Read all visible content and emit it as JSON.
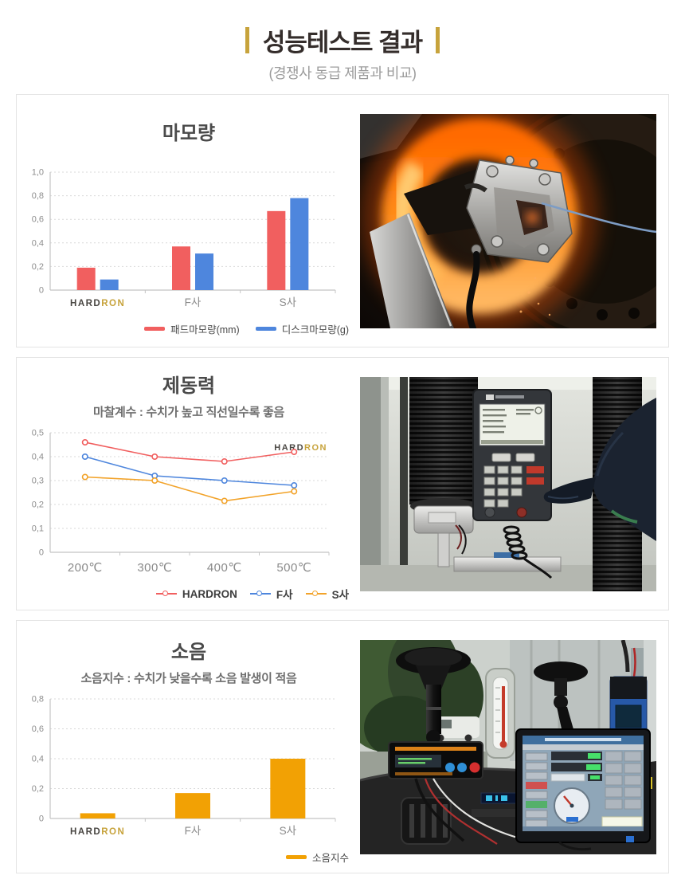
{
  "header": {
    "title": "성능테스트 결과",
    "subtitle": "(경쟁사 동급 제품과 비교)"
  },
  "brand": {
    "logo_dark": "HARD",
    "logo_gold": "RON"
  },
  "colors": {
    "accent_gold": "#c7a33c",
    "red": "#f15f5f",
    "blue": "#4e86dd",
    "orange_line": "#f2a32a",
    "orange_bar": "#f2a104",
    "axis": "#c4c4c4",
    "grid": "#d9d9d9",
    "tick_label": "#8d8d8d",
    "cat_label": "#8a8a8a"
  },
  "chart_data": [
    {
      "type": "bar",
      "title": "마모량",
      "categories": [
        "HARDRON",
        "F사",
        "S사"
      ],
      "series": [
        {
          "name": "패드마모량(mm)",
          "color": "#f15f5f",
          "values": [
            0.19,
            0.37,
            0.67
          ]
        },
        {
          "name": "디스크마모량(g)",
          "color": "#4e86dd",
          "values": [
            0.09,
            0.31,
            0.78
          ]
        }
      ],
      "ylim": [
        0,
        1.0
      ],
      "ytick_labels": [
        "1,0",
        "0,8",
        "0,6",
        "0,4",
        "0,2",
        "0"
      ],
      "grid": "dotted-horizontal",
      "legend_position": "bottom-right"
    },
    {
      "type": "line",
      "title": "제동력",
      "subtitle": "마찰계수 : 수치가 높고 직선일수록 좋음",
      "x": [
        "200℃",
        "300℃",
        "400℃",
        "500℃"
      ],
      "series": [
        {
          "name": "HARDRON",
          "color": "#f15f5f",
          "values": [
            0.46,
            0.4,
            0.38,
            0.42
          ]
        },
        {
          "name": "F사",
          "color": "#4e86dd",
          "values": [
            0.4,
            0.32,
            0.3,
            0.28
          ]
        },
        {
          "name": "S사",
          "color": "#f2a32a",
          "values": [
            0.315,
            0.3,
            0.215,
            0.255
          ]
        }
      ],
      "ylim": [
        0,
        0.5
      ],
      "ytick_labels": [
        "0,5",
        "0,4",
        "0,3",
        "0,2",
        "0,1",
        "0"
      ],
      "grid": "dotted-horizontal",
      "legend_position": "bottom-right",
      "watermark": "HARDRON"
    },
    {
      "type": "bar",
      "title": "소음",
      "subtitle": "소음지수 : 수치가 낮을수록 소음 발생이 적음",
      "categories": [
        "HARDRON",
        "F사",
        "S사"
      ],
      "series": [
        {
          "name": "소음지수",
          "color": "#f2a104",
          "values": [
            0.035,
            0.17,
            0.4
          ]
        }
      ],
      "ylim": [
        0,
        0.8
      ],
      "ytick_labels": [
        "0,8",
        "0,6",
        "0,4",
        "0,2",
        "0"
      ],
      "grid": "dotted-horizontal",
      "legend_position": "bottom-right"
    }
  ]
}
